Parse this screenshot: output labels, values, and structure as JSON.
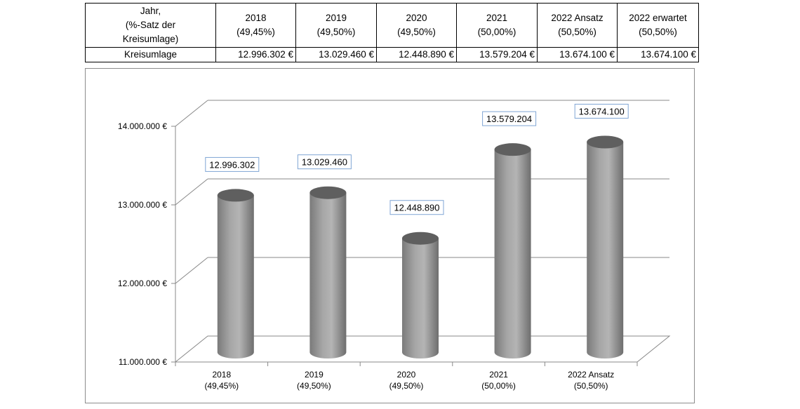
{
  "table": {
    "header_label_lines": [
      "Jahr,",
      "(%-Satz der",
      "Kreisumlage)"
    ],
    "columns": [
      {
        "year": "2018",
        "rate": "(49,45%)"
      },
      {
        "year": "2019",
        "rate": "(49,50%)"
      },
      {
        "year": "2020",
        "rate": "(49,50%)"
      },
      {
        "year": "2021",
        "rate": "(50,00%)"
      },
      {
        "year": "2022 Ansatz",
        "rate": "(50,50%)"
      },
      {
        "year": "2022 erwartet",
        "rate": "(50,50%)"
      }
    ],
    "row_label": "Kreisumlage",
    "row_values": [
      "12.996.302 €",
      "13.029.460 €",
      "12.448.890 €",
      "13.579.204 €",
      "13.674.100 €",
      "13.674.100 €"
    ]
  },
  "chart_data": {
    "type": "bar",
    "style": "3d-cylinder",
    "bar_color": "#a6a6a6",
    "categories": [
      [
        "2018",
        "(49,45%)"
      ],
      [
        "2019",
        "(49,50%)"
      ],
      [
        "2020",
        "(49,50%)"
      ],
      [
        "2021",
        "(50,00%)"
      ],
      [
        "2022 Ansatz",
        "(50,50%)"
      ]
    ],
    "values": [
      12996302,
      13029460,
      12448890,
      13579204,
      13674100
    ],
    "data_labels": [
      "12.996.302",
      "13.029.460",
      "12.448.890",
      "13.579.204",
      "13.674.100"
    ],
    "ylim": [
      11000000,
      14000000
    ],
    "yticks": [
      11000000,
      12000000,
      13000000,
      14000000
    ],
    "ytick_labels": [
      "11.000.000 €",
      "12.000.000 €",
      "13.000.000 €",
      "14.000.000 €"
    ],
    "grid": true,
    "legend": "none",
    "title": "",
    "xlabel": "",
    "ylabel": ""
  }
}
